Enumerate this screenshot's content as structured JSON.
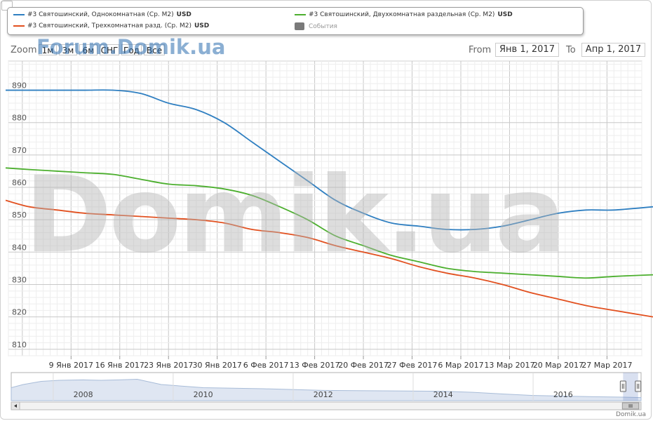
{
  "legend": {
    "items": [
      {
        "name": "#3 Святошинский, Однокомнатная (Ср. М2)",
        "unit": "USD",
        "color": "#2f7fc1"
      },
      {
        "name": "#3 Святошинский, Двухкомнатная раздельная (Ср. М2)",
        "unit": "USD",
        "color": "#4caf2e"
      },
      {
        "name": "#3 Святошинский, Трехкомнатная разд. (Ср. М2)",
        "unit": "USD",
        "color": "#e2501f"
      }
    ],
    "events_label": "События",
    "events_color": "#7a7a7a"
  },
  "toolbar": {
    "zoom_label": "Zoom",
    "zoom_buttons": [
      "1м",
      "3м",
      "6м",
      "СНГ",
      "Год",
      "Все"
    ],
    "from_label": "From",
    "from_value": "Янв 1, 2017",
    "to_label": "To",
    "to_value": "Апр 1, 2017"
  },
  "watermarks": {
    "top": "Forum.Domik.ua",
    "big": "Domik.ua"
  },
  "flag_dot_colors": [
    "#5b8fd0",
    "#d8db6a",
    "#d65a7d"
  ],
  "credit": "Domik.ua",
  "chart_data": {
    "type": "line",
    "x_tick_labels": [
      "9 Янв 2017",
      "16 Янв 2017",
      "23 Янв 2017",
      "30 Янв 2017",
      "6 Фев 2017",
      "13 Фев 2017",
      "20 Фев 2017",
      "27 Фев 2017",
      "6 Мар 2017",
      "13 Мар 2017",
      "20 Мар 2017",
      "27 Мар 2017"
    ],
    "y_ticks": [
      810,
      820,
      830,
      840,
      850,
      860,
      870,
      880,
      890
    ],
    "ylim": [
      808,
      899
    ],
    "xlim": [
      "2016-12-31",
      "2017-04-01"
    ],
    "series": [
      {
        "name": "#3 Святошинский, Однокомнатная (Ср. М2)",
        "color": "#2f7fc1",
        "x": [
          "2016-12-31",
          "2017-01-03",
          "2017-01-07",
          "2017-01-11",
          "2017-01-15",
          "2017-01-19",
          "2017-01-23",
          "2017-01-27",
          "2017-01-31",
          "2017-02-04",
          "2017-02-08",
          "2017-02-12",
          "2017-02-16",
          "2017-02-20",
          "2017-02-24",
          "2017-02-28",
          "2017-03-04",
          "2017-03-08",
          "2017-03-12",
          "2017-03-16",
          "2017-03-20",
          "2017-03-24",
          "2017-03-28",
          "2017-04-01"
        ],
        "values": [
          890,
          890,
          890,
          890,
          890,
          889,
          886,
          884,
          880,
          874,
          868,
          862,
          856,
          852,
          849,
          848,
          847,
          847,
          848,
          850,
          852,
          853,
          853,
          854
        ]
      },
      {
        "name": "#3 Святошинский, Двухкомнатная раздельная (Ср. М2)",
        "color": "#4caf2e",
        "x": [
          "2016-12-31",
          "2017-01-03",
          "2017-01-07",
          "2017-01-11",
          "2017-01-15",
          "2017-01-19",
          "2017-01-23",
          "2017-01-27",
          "2017-01-31",
          "2017-02-04",
          "2017-02-08",
          "2017-02-12",
          "2017-02-16",
          "2017-02-20",
          "2017-02-24",
          "2017-02-28",
          "2017-03-04",
          "2017-03-08",
          "2017-03-12",
          "2017-03-16",
          "2017-03-20",
          "2017-03-24",
          "2017-03-28",
          "2017-04-01"
        ],
        "values": [
          866,
          865.5,
          865,
          864.5,
          864,
          862.5,
          861,
          860.5,
          859.5,
          857.5,
          854,
          850,
          845,
          842,
          839,
          837,
          835,
          834,
          833.5,
          833,
          832.5,
          832,
          832.5,
          833
        ]
      },
      {
        "name": "#3 Святошинский, Трехкомнатная разд. (Ср. М2)",
        "color": "#e2501f",
        "x": [
          "2016-12-31",
          "2017-01-03",
          "2017-01-07",
          "2017-01-11",
          "2017-01-15",
          "2017-01-19",
          "2017-01-23",
          "2017-01-27",
          "2017-01-31",
          "2017-02-04",
          "2017-02-08",
          "2017-02-12",
          "2017-02-16",
          "2017-02-20",
          "2017-02-24",
          "2017-02-28",
          "2017-03-04",
          "2017-03-08",
          "2017-03-12",
          "2017-03-16",
          "2017-03-20",
          "2017-03-24",
          "2017-03-28",
          "2017-04-01"
        ],
        "values": [
          856,
          854,
          853,
          852,
          851.5,
          851,
          850.5,
          850,
          849,
          847,
          846,
          844.5,
          842,
          840,
          838,
          835.5,
          833.5,
          832,
          830,
          827.5,
          825.5,
          823.5,
          822,
          820
        ]
      }
    ],
    "navigator": {
      "year_labels": [
        "2008",
        "2010",
        "2012",
        "2014",
        "2016"
      ],
      "x": [
        2006.8,
        2007.0,
        2007.3,
        2007.6,
        2008.0,
        2008.3,
        2008.6,
        2008.9,
        2009.3,
        2010.0,
        2011.0,
        2012.0,
        2013.0,
        2014.0,
        2014.5,
        2015.0,
        2015.5,
        2016.0,
        2016.5,
        2017.0,
        2017.3
      ],
      "values": [
        0.55,
        0.7,
        0.85,
        0.9,
        0.92,
        0.9,
        0.92,
        0.95,
        0.7,
        0.55,
        0.5,
        0.42,
        0.4,
        0.38,
        0.33,
        0.25,
        0.18,
        0.15,
        0.12,
        0.1,
        0.08
      ],
      "selected": [
        "2017-01-01",
        "2017-04-01"
      ]
    },
    "grid": true,
    "legend_position": "top"
  }
}
